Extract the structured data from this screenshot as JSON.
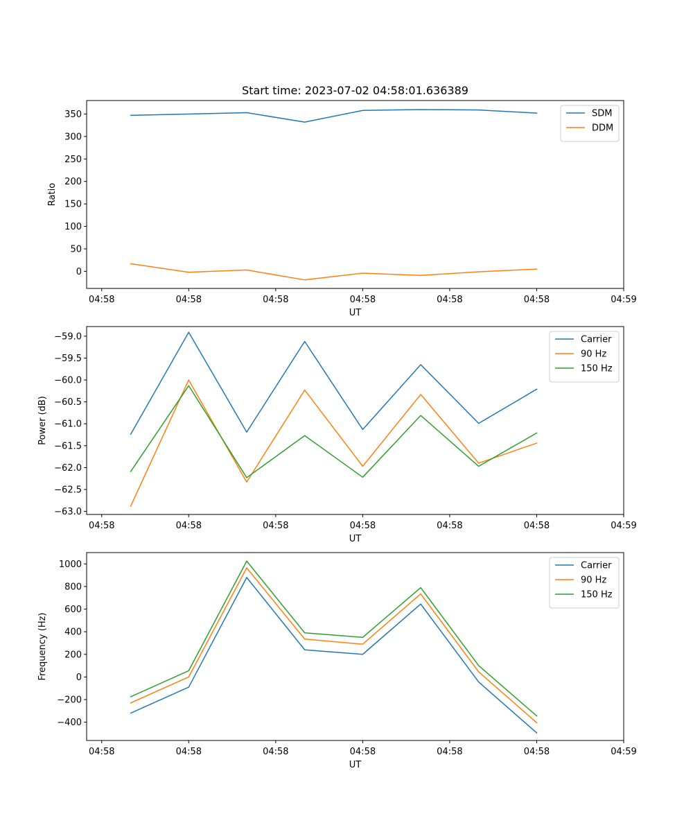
{
  "title": "Start time: 2023-07-02 04:58:01.636389",
  "colors": {
    "blue": "#1f77b4",
    "orange": "#ff7f0e",
    "green": "#2ca02c"
  },
  "chart_data": [
    {
      "type": "line",
      "xlabel": "UT",
      "ylabel": "Ratio",
      "xlim": [
        -0.76,
        8.5
      ],
      "ylim": [
        -38,
        380
      ],
      "yticks": [
        0,
        50,
        100,
        150,
        200,
        250,
        300,
        350
      ],
      "ytick_labels": [
        "0",
        "50",
        "100",
        "150",
        "200",
        "250",
        "300",
        "350"
      ],
      "xticks": [
        -0.5,
        1,
        2.5,
        4,
        5.5,
        7,
        8.5
      ],
      "xtick_labels": [
        "04:58",
        "04:58",
        "04:58",
        "04:58",
        "04:58",
        "04:58",
        "04:59"
      ],
      "legend_position": "top-right",
      "x": [
        0,
        1,
        2,
        3,
        4,
        5,
        6,
        7
      ],
      "series": [
        {
          "name": "SDM",
          "color": "#1f77b4",
          "values": [
            347,
            350,
            353,
            332,
            358,
            360,
            359,
            352
          ]
        },
        {
          "name": "DDM",
          "color": "#ff7f0e",
          "values": [
            17,
            -2,
            3,
            -19,
            -4,
            -9,
            -1,
            5
          ]
        }
      ]
    },
    {
      "type": "line",
      "xlabel": "UT",
      "ylabel": "Power (dB)",
      "xlim": [
        -0.76,
        8.5
      ],
      "ylim": [
        -63.07,
        -58.78
      ],
      "yticks": [
        -63.0,
        -62.5,
        -62.0,
        -61.5,
        -61.0,
        -60.5,
        -60.0,
        -59.5,
        -59.0
      ],
      "ytick_labels": [
        "−63.0",
        "−62.5",
        "−62.0",
        "−61.5",
        "−61.0",
        "−60.5",
        "−60.0",
        "−59.5",
        "−59.0"
      ],
      "xticks": [
        -0.5,
        1,
        2.5,
        4,
        5.5,
        7,
        8.5
      ],
      "xtick_labels": [
        "04:58",
        "04:58",
        "04:58",
        "04:58",
        "04:58",
        "04:58",
        "04:59"
      ],
      "legend_position": "top-right",
      "x": [
        0,
        1,
        2,
        3,
        4,
        5,
        6,
        7
      ],
      "series": [
        {
          "name": "Carrier",
          "color": "#1f77b4",
          "values": [
            -61.24,
            -58.91,
            -61.19,
            -59.12,
            -61.13,
            -59.65,
            -60.99,
            -60.21
          ]
        },
        {
          "name": "90 Hz",
          "color": "#ff7f0e",
          "values": [
            -62.88,
            -60.0,
            -62.33,
            -60.23,
            -61.97,
            -60.33,
            -61.9,
            -61.44
          ]
        },
        {
          "name": "150 Hz",
          "color": "#2ca02c",
          "values": [
            -62.09,
            -60.13,
            -62.23,
            -61.27,
            -62.22,
            -60.81,
            -61.97,
            -61.21
          ]
        }
      ]
    },
    {
      "type": "line",
      "xlabel": "UT",
      "ylabel": "Frequency (Hz)",
      "xlim": [
        -0.76,
        8.5
      ],
      "ylim": [
        -562,
        1100
      ],
      "yticks": [
        -400,
        -200,
        0,
        200,
        400,
        600,
        800,
        1000
      ],
      "ytick_labels": [
        "−400",
        "−200",
        "0",
        "200",
        "400",
        "600",
        "800",
        "1000"
      ],
      "xticks": [
        -0.5,
        1,
        2.5,
        4,
        5.5,
        7,
        8.5
      ],
      "xtick_labels": [
        "04:58",
        "04:58",
        "04:58",
        "04:58",
        "04:58",
        "04:58",
        "04:59"
      ],
      "legend_position": "top-right",
      "x": [
        0,
        1,
        2,
        3,
        4,
        5,
        6,
        7
      ],
      "series": [
        {
          "name": "Carrier",
          "color": "#1f77b4",
          "values": [
            -320,
            -90,
            880,
            240,
            200,
            645,
            -45,
            -495
          ]
        },
        {
          "name": "90 Hz",
          "color": "#ff7f0e",
          "values": [
            -230,
            0,
            965,
            335,
            290,
            735,
            45,
            -405
          ]
        },
        {
          "name": "150 Hz",
          "color": "#2ca02c",
          "values": [
            -175,
            55,
            1025,
            390,
            350,
            790,
            100,
            -345
          ]
        }
      ]
    }
  ]
}
